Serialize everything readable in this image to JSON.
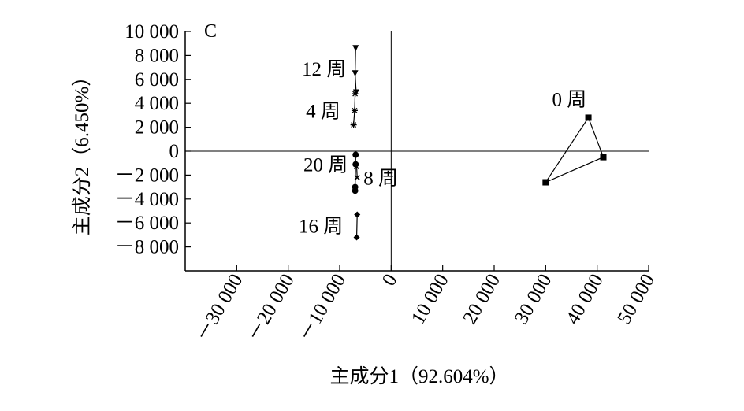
{
  "chart_data": {
    "type": "scatter",
    "panel_label": "C",
    "xlabel": "主成分1（92.604%）",
    "ylabel": "主成分2（6.450%）",
    "xlim": [
      -40000,
      50000
    ],
    "ylim": [
      -10000,
      10000
    ],
    "x_ticks": [
      -30000,
      -20000,
      -10000,
      0,
      10000,
      20000,
      30000,
      40000,
      50000
    ],
    "x_tick_labels": [
      "－30 000",
      "－20 000",
      "－10 000",
      "0",
      "10 000",
      "20 000",
      "30 000",
      "40 000",
      "50 000"
    ],
    "y_ticks": [
      10000,
      8000,
      6000,
      4000,
      2000,
      0,
      -2000,
      -4000,
      -6000,
      -8000
    ],
    "y_tick_labels": [
      "10 000",
      "8 000",
      "6 000",
      "4 000",
      "2 000",
      "0",
      "－2 000",
      "－4 000",
      "－6 000",
      "－8 000"
    ],
    "reference_lines": {
      "x": 0,
      "y": 0
    },
    "series": [
      {
        "name": "0 周",
        "marker": "square",
        "closed": true,
        "points": [
          [
            38300,
            2800
          ],
          [
            41200,
            -500
          ],
          [
            30000,
            -2600
          ]
        ]
      },
      {
        "name": "4 周",
        "marker": "star",
        "closed": false,
        "points": [
          [
            -7300,
            2200
          ],
          [
            -7100,
            3400
          ],
          [
            -7000,
            4800
          ]
        ]
      },
      {
        "name": "12 周",
        "marker": "triangle-down",
        "closed": false,
        "points": [
          [
            -6900,
            8600
          ],
          [
            -7000,
            6500
          ],
          [
            -6800,
            4900
          ]
        ]
      },
      {
        "name": "8 周",
        "marker": "x",
        "closed": false,
        "points": [
          [
            -6700,
            -1300
          ],
          [
            -6600,
            -2200
          ]
        ]
      },
      {
        "name": "20 周",
        "marker": "circle",
        "closed": false,
        "points": [
          [
            -6900,
            -300
          ],
          [
            -6900,
            -1100
          ],
          [
            -7000,
            -3000
          ],
          [
            -7000,
            -3300
          ]
        ]
      },
      {
        "name": "16 周",
        "marker": "diamond",
        "closed": false,
        "points": [
          [
            -6600,
            -5300
          ],
          [
            -6700,
            -7200
          ]
        ]
      }
    ]
  }
}
